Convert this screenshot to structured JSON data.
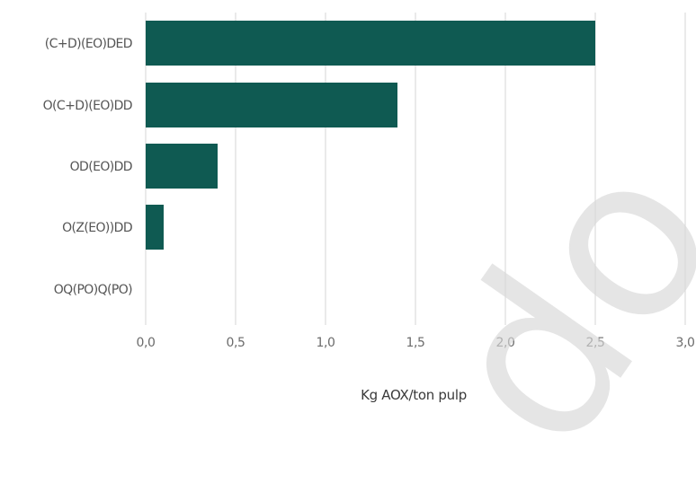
{
  "chart_data": {
    "type": "bar",
    "orientation": "horizontal",
    "categories": [
      "(C+D)(EO)DED",
      "O(C+D)(EO)DD",
      "OD(EO)DD",
      "O(Z(EO))DD",
      "OQ(PO)Q(PO)"
    ],
    "values": [
      2.5,
      1.4,
      0.4,
      0.1,
      0.0
    ],
    "xlabel": "Kg AOX/ton pulp",
    "ylabel": "",
    "xlim": [
      0,
      3.0
    ],
    "xticks": [
      "0,0",
      "0,5",
      "1,0",
      "1,5",
      "2,0",
      "2,5",
      "3,0"
    ],
    "grid": "vertical",
    "legend": "none",
    "bar_color": "#0f5a52",
    "grid_color": "#d6d6d6"
  }
}
